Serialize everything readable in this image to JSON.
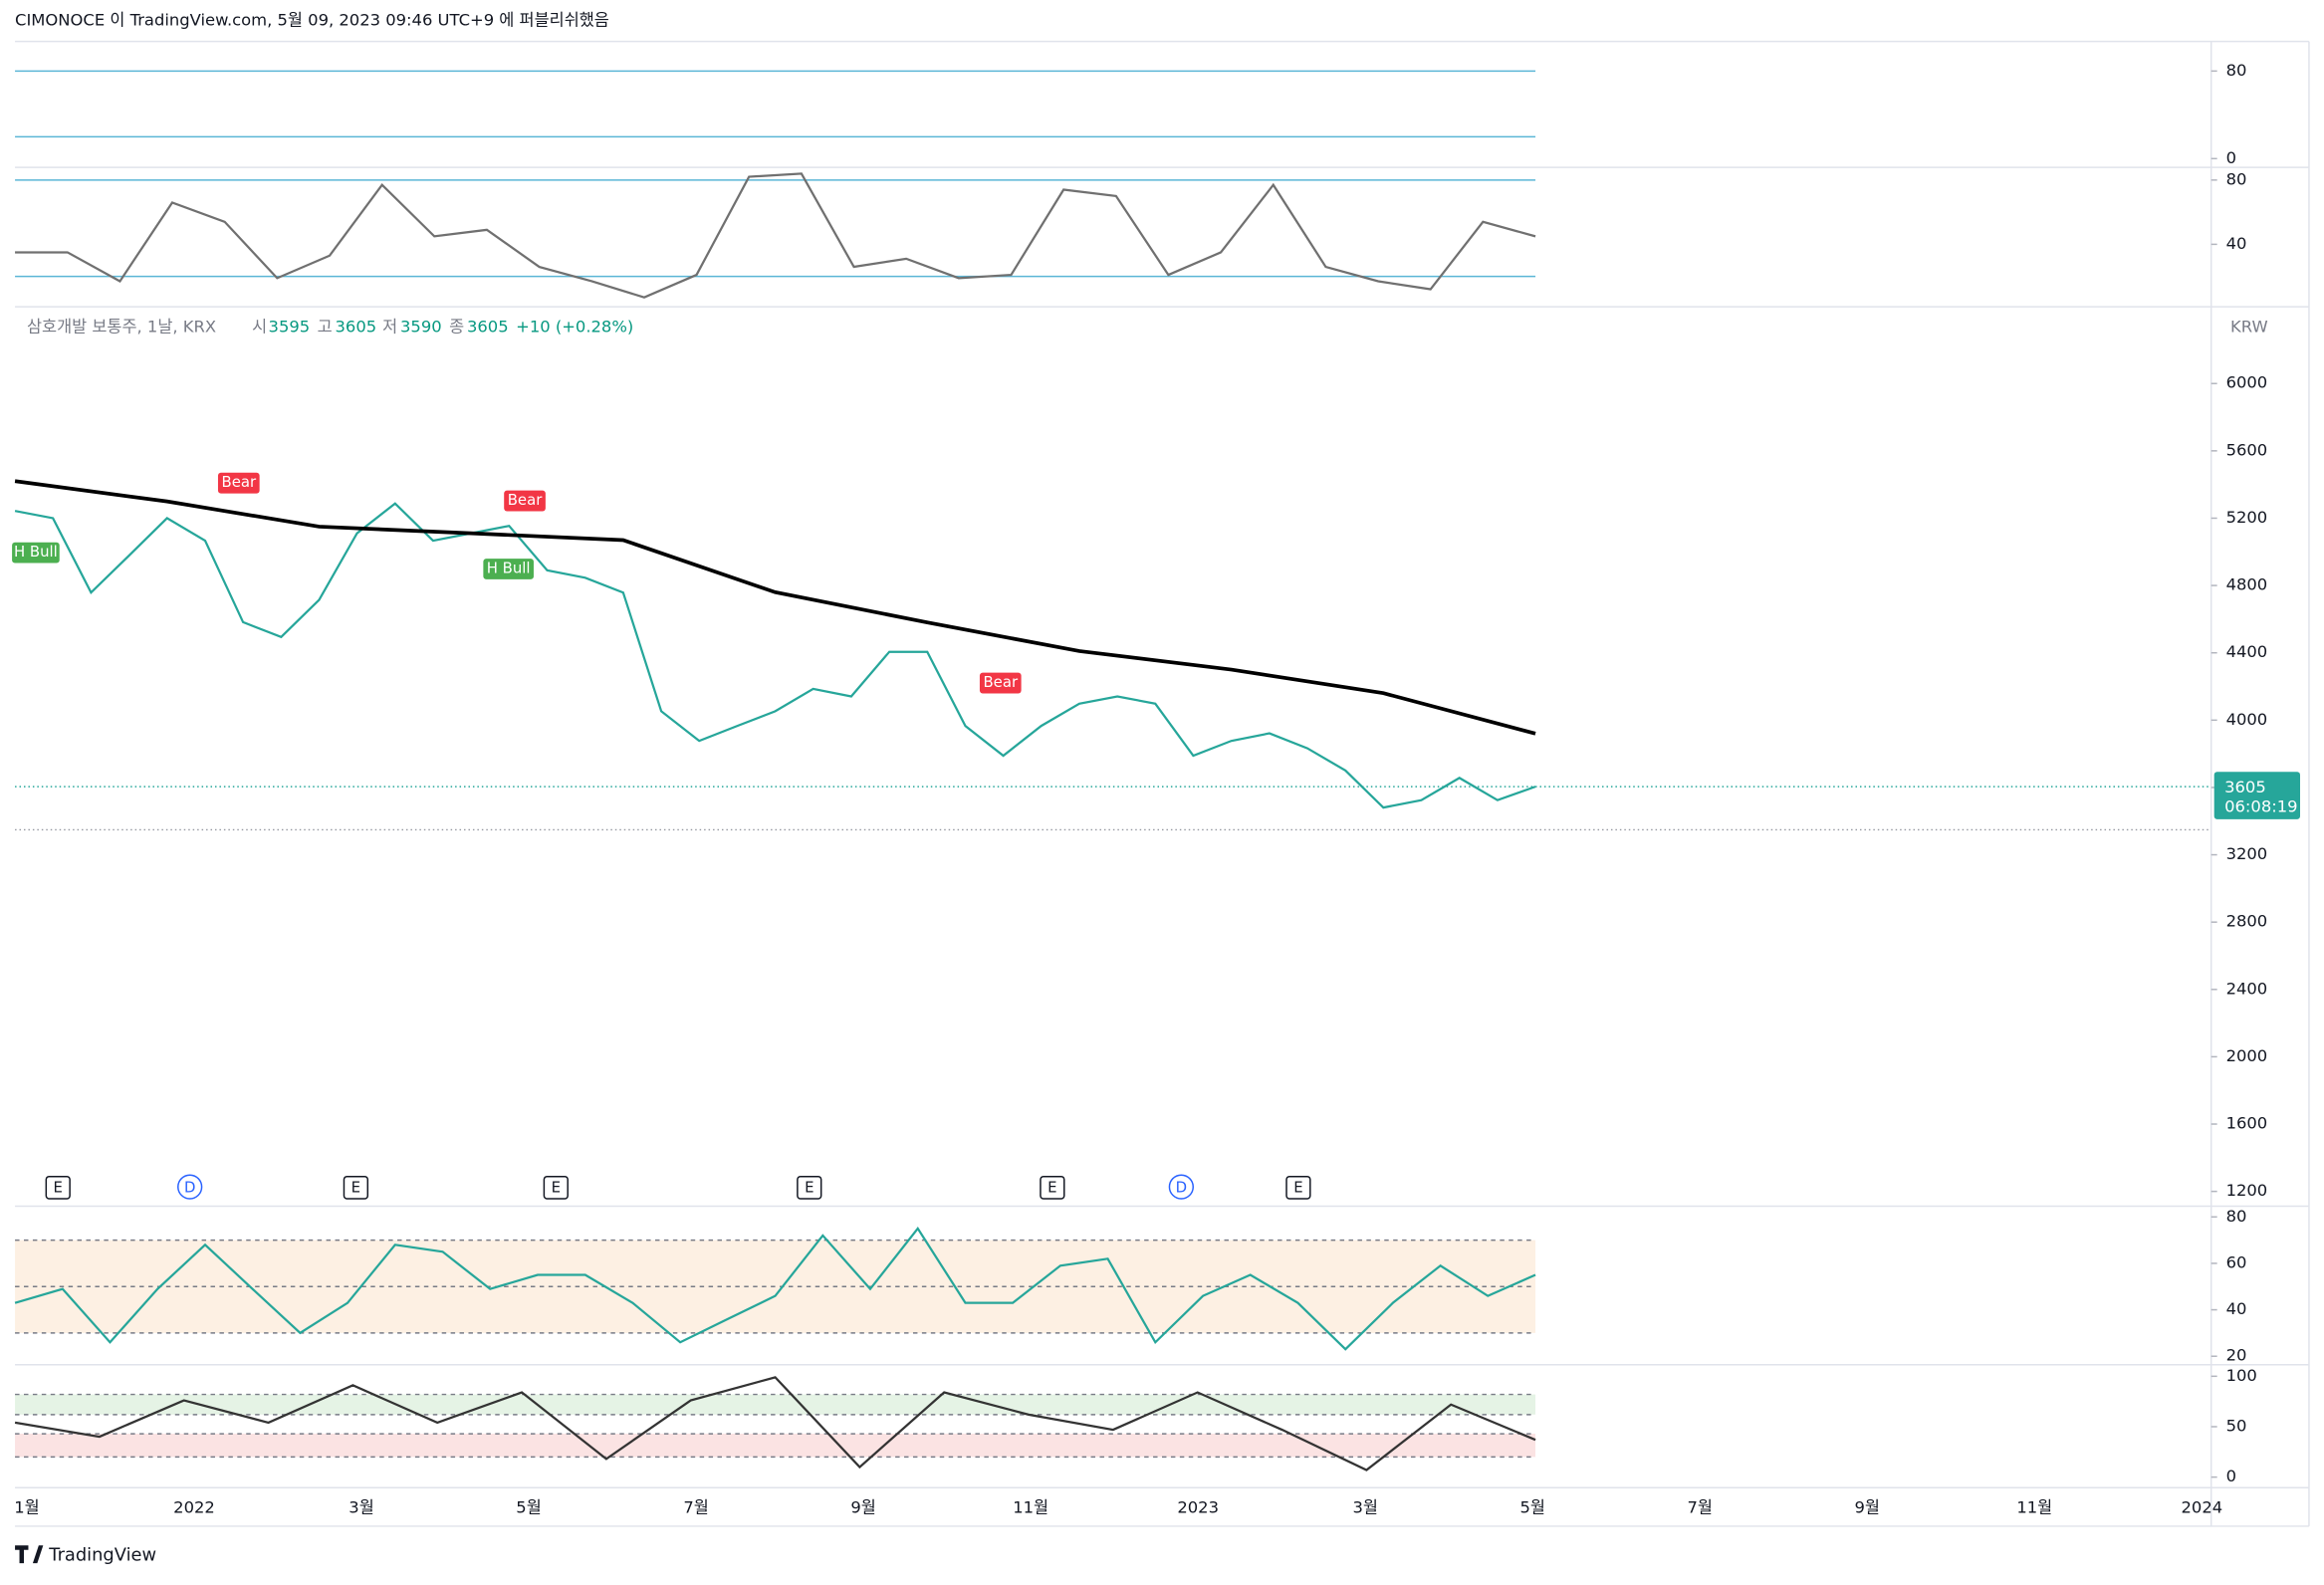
{
  "header": {
    "text": "CIMONOCE 이 TradingView.com, 5월 09, 2023 09:46 UTC+9 에 퍼블리쉬했음"
  },
  "footer": {
    "brand": "TradingView"
  },
  "x_axis": {
    "labels": [
      "1월",
      "2022",
      "3월",
      "5월",
      "7월",
      "9월",
      "11월",
      "2023",
      "3월",
      "5월",
      "7월",
      "9월",
      "11월",
      "2024"
    ]
  },
  "events": [
    "E",
    "D",
    "E",
    "E",
    "E",
    "E",
    "D",
    "E"
  ],
  "signals": [
    "Bear",
    "Bear",
    "Bear",
    "H Bull",
    "H Bull"
  ],
  "chart_data": [
    {
      "type": "line",
      "ylim": [
        -4,
        107
      ],
      "yticks": [
        80,
        0
      ],
      "bands": [
        20,
        80
      ],
      "band_color": "#5bb6d6"
    },
    {
      "type": "line",
      "ylim": [
        3,
        86
      ],
      "yticks": [
        80,
        40
      ],
      "bands": [
        20,
        80
      ],
      "band_color": "#5bb6d6",
      "series": [
        {
          "color": "#707070",
          "values": [
            35,
            35,
            17,
            66,
            54,
            19,
            33,
            77,
            45,
            49,
            26,
            17,
            7,
            21,
            82,
            84,
            26,
            31,
            19,
            21,
            74,
            70,
            21,
            35,
            77,
            26,
            17,
            12,
            54,
            45
          ]
        }
      ]
    },
    {
      "type": "line",
      "title": "삼호개발 보통주, 1날, KRX",
      "currency": "KRW",
      "ohlc": {
        "labels": [
          "시",
          "고",
          "저",
          "종"
        ],
        "values": [
          3595,
          3605,
          3590,
          3605
        ]
      },
      "change": "+10 (+0.28%)",
      "last": {
        "value": 3605,
        "countdown": "06:08:19"
      },
      "ylim": [
        1130,
        6430
      ],
      "yticks": [
        6000,
        5600,
        5200,
        4800,
        4400,
        4000,
        3600,
        3200,
        2800,
        2400,
        2000,
        1600,
        1200
      ],
      "series": [
        {
          "color": "#26a69a",
          "values": [
            5243,
            5200,
            4758,
            4978,
            5200,
            5066,
            4582,
            4494,
            4714,
            5110,
            5287,
            5066,
            5110,
            5154,
            4890,
            4846,
            4758,
            4053,
            3877,
            3966,
            4053,
            4186,
            4141,
            4406,
            4406,
            3966,
            3789,
            3966,
            4098,
            4141,
            4098,
            3789,
            3877,
            3922,
            3833,
            3701,
            3481,
            3525,
            3657,
            3525,
            3605
          ]
        },
        {
          "color": "#000000",
          "values": [
            5420,
            5300,
            5150,
            5110,
            5070,
            4760,
            4580,
            4410,
            4300,
            4160,
            3920
          ]
        }
      ]
    },
    {
      "type": "line",
      "ylim": [
        17,
        84
      ],
      "yticks": [
        80,
        60,
        40,
        20
      ],
      "dashed": [
        70,
        50,
        30
      ],
      "fill_band": [
        30,
        70
      ],
      "fill_color": "#fdf0e3",
      "series": [
        {
          "color": "#26a69a",
          "values": [
            43,
            49,
            26,
            49,
            68,
            49,
            30,
            43,
            68,
            65,
            49,
            55,
            55,
            43,
            26,
            36,
            46,
            72,
            49,
            75,
            43,
            43,
            59,
            62,
            26,
            46,
            55,
            43,
            23,
            43,
            59,
            46,
            55
          ]
        }
      ]
    },
    {
      "type": "line",
      "ylim": [
        -9,
        110
      ],
      "yticks": [
        100,
        50,
        0
      ],
      "dashed": [
        82,
        62,
        43,
        20
      ],
      "zones": [
        {
          "range": [
            62,
            82
          ],
          "color": "#e5f3e5"
        },
        {
          "range": [
            20,
            43
          ],
          "color": "#fbe3e3"
        }
      ],
      "series": [
        {
          "color": "#333333",
          "values": [
            54,
            40,
            76,
            54,
            91,
            54,
            84,
            18,
            76,
            99,
            10,
            84,
            62,
            47,
            84,
            47,
            7,
            72,
            37
          ]
        }
      ]
    }
  ]
}
